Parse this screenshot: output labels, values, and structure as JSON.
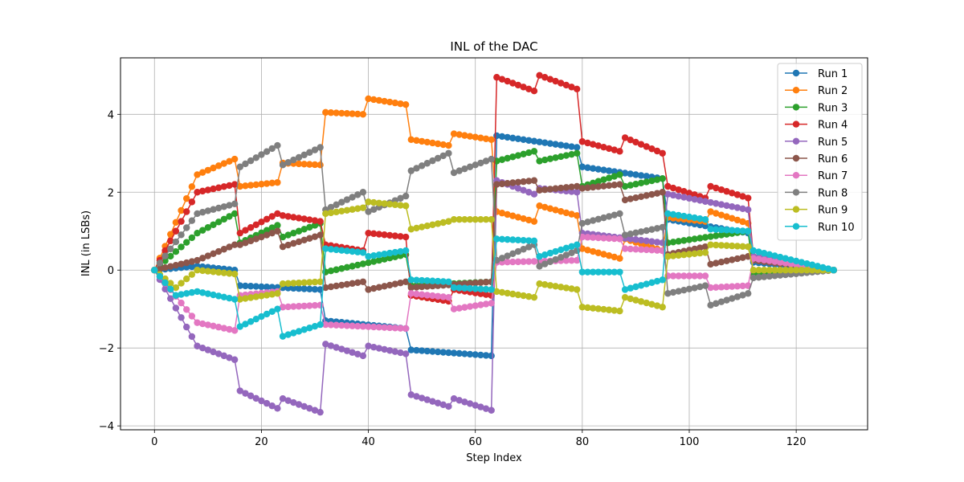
{
  "chart_data": {
    "type": "line",
    "title": "INL of the DAC",
    "xlabel": "Step Index",
    "ylabel": "INL (in LSBs)",
    "xlim": [
      -6.35,
      133.35
    ],
    "ylim": [
      -4.1,
      5.45
    ],
    "xticks": [
      0,
      20,
      40,
      60,
      80,
      100,
      120
    ],
    "yticks": [
      -4,
      -2,
      0,
      2,
      4
    ],
    "ytick_labels": [
      "−4",
      "−2",
      "0",
      "2",
      "4"
    ],
    "grid": true,
    "legend_position": "top-right",
    "n_points": 128,
    "series": [
      {
        "name": "Run 1",
        "color": "#1f77b4",
        "anchors": [
          [
            0,
            0
          ],
          [
            8,
            0.1
          ],
          [
            15,
            0.0
          ],
          [
            16,
            -0.4
          ],
          [
            31,
            -0.5
          ],
          [
            32,
            -1.3
          ],
          [
            47,
            -1.5
          ],
          [
            48,
            -2.05
          ],
          [
            63,
            -2.2
          ],
          [
            64,
            3.45
          ],
          [
            79,
            3.15
          ],
          [
            80,
            2.65
          ],
          [
            95,
            2.35
          ],
          [
            96,
            1.3
          ],
          [
            111,
            0.95
          ],
          [
            112,
            0.2
          ],
          [
            127,
            0
          ]
        ]
      },
      {
        "name": "Run 2",
        "color": "#ff7f0e",
        "anchors": [
          [
            0,
            0
          ],
          [
            8,
            2.45
          ],
          [
            15,
            2.85
          ],
          [
            16,
            2.15
          ],
          [
            23,
            2.25
          ],
          [
            24,
            2.75
          ],
          [
            31,
            2.7
          ],
          [
            32,
            4.05
          ],
          [
            39,
            4.0
          ],
          [
            40,
            4.4
          ],
          [
            47,
            4.25
          ],
          [
            48,
            3.35
          ],
          [
            55,
            3.2
          ],
          [
            56,
            3.5
          ],
          [
            63,
            3.35
          ],
          [
            64,
            1.5
          ],
          [
            71,
            1.25
          ],
          [
            72,
            1.65
          ],
          [
            79,
            1.4
          ],
          [
            80,
            0.55
          ],
          [
            87,
            0.3
          ],
          [
            88,
            0.8
          ],
          [
            95,
            0.5
          ],
          [
            96,
            1.35
          ],
          [
            103,
            1.25
          ],
          [
            104,
            1.5
          ],
          [
            111,
            1.2
          ],
          [
            112,
            0.3
          ],
          [
            127,
            0
          ]
        ]
      },
      {
        "name": "Run 3",
        "color": "#2ca02c",
        "anchors": [
          [
            0,
            0
          ],
          [
            8,
            0.95
          ],
          [
            15,
            1.45
          ],
          [
            16,
            0.7
          ],
          [
            23,
            1.15
          ],
          [
            24,
            0.85
          ],
          [
            31,
            1.2
          ],
          [
            32,
            -0.05
          ],
          [
            47,
            0.4
          ],
          [
            48,
            -0.4
          ],
          [
            63,
            -0.3
          ],
          [
            64,
            2.8
          ],
          [
            71,
            3.05
          ],
          [
            72,
            2.8
          ],
          [
            79,
            3.0
          ],
          [
            80,
            2.15
          ],
          [
            87,
            2.45
          ],
          [
            88,
            2.15
          ],
          [
            95,
            2.35
          ],
          [
            96,
            0.7
          ],
          [
            111,
            1.0
          ],
          [
            112,
            -0.1
          ],
          [
            127,
            0
          ]
        ]
      },
      {
        "name": "Run 4",
        "color": "#d62728",
        "anchors": [
          [
            0,
            0
          ],
          [
            8,
            2.0
          ],
          [
            15,
            2.2
          ],
          [
            16,
            0.95
          ],
          [
            23,
            1.45
          ],
          [
            24,
            1.4
          ],
          [
            31,
            1.25
          ],
          [
            32,
            0.65
          ],
          [
            39,
            0.5
          ],
          [
            40,
            0.95
          ],
          [
            47,
            0.85
          ],
          [
            48,
            -0.65
          ],
          [
            55,
            -0.8
          ],
          [
            56,
            -0.5
          ],
          [
            63,
            -0.65
          ],
          [
            64,
            4.95
          ],
          [
            71,
            4.6
          ],
          [
            72,
            5.0
          ],
          [
            79,
            4.65
          ],
          [
            80,
            3.3
          ],
          [
            87,
            3.05
          ],
          [
            88,
            3.4
          ],
          [
            95,
            3.0
          ],
          [
            96,
            2.15
          ],
          [
            103,
            1.85
          ],
          [
            104,
            2.15
          ],
          [
            111,
            1.85
          ],
          [
            112,
            0.35
          ],
          [
            127,
            0
          ]
        ]
      },
      {
        "name": "Run 5",
        "color": "#9467bd",
        "anchors": [
          [
            0,
            0
          ],
          [
            8,
            -1.95
          ],
          [
            15,
            -2.3
          ],
          [
            16,
            -3.1
          ],
          [
            23,
            -3.55
          ],
          [
            24,
            -3.3
          ],
          [
            31,
            -3.65
          ],
          [
            32,
            -1.9
          ],
          [
            39,
            -2.2
          ],
          [
            40,
            -1.95
          ],
          [
            47,
            -2.15
          ],
          [
            48,
            -3.2
          ],
          [
            55,
            -3.5
          ],
          [
            56,
            -3.3
          ],
          [
            63,
            -3.6
          ],
          [
            64,
            2.3
          ],
          [
            71,
            1.95
          ],
          [
            72,
            2.1
          ],
          [
            79,
            2.0
          ],
          [
            80,
            0.95
          ],
          [
            95,
            0.7
          ],
          [
            96,
            1.95
          ],
          [
            111,
            1.55
          ],
          [
            112,
            0.35
          ],
          [
            127,
            0
          ]
        ]
      },
      {
        "name": "Run 6",
        "color": "#8c564b",
        "anchors": [
          [
            0,
            0
          ],
          [
            8,
            0.25
          ],
          [
            15,
            0.65
          ],
          [
            16,
            0.65
          ],
          [
            23,
            1.0
          ],
          [
            24,
            0.6
          ],
          [
            31,
            0.9
          ],
          [
            32,
            -0.45
          ],
          [
            39,
            -0.3
          ],
          [
            40,
            -0.5
          ],
          [
            47,
            -0.3
          ],
          [
            48,
            -0.45
          ],
          [
            63,
            -0.3
          ],
          [
            64,
            2.2
          ],
          [
            71,
            2.3
          ],
          [
            72,
            2.05
          ],
          [
            79,
            2.15
          ],
          [
            80,
            2.1
          ],
          [
            87,
            2.2
          ],
          [
            88,
            1.8
          ],
          [
            95,
            2.0
          ],
          [
            96,
            0.4
          ],
          [
            103,
            0.6
          ],
          [
            104,
            0.15
          ],
          [
            111,
            0.35
          ],
          [
            112,
            0.25
          ],
          [
            127,
            0
          ]
        ]
      },
      {
        "name": "Run 7",
        "color": "#e377c2",
        "anchors": [
          [
            0,
            0
          ],
          [
            8,
            -1.35
          ],
          [
            15,
            -1.55
          ],
          [
            16,
            -0.65
          ],
          [
            23,
            -0.55
          ],
          [
            24,
            -0.95
          ],
          [
            31,
            -0.9
          ],
          [
            32,
            -1.4
          ],
          [
            47,
            -1.5
          ],
          [
            48,
            -0.6
          ],
          [
            55,
            -0.7
          ],
          [
            56,
            -1.0
          ],
          [
            63,
            -0.85
          ],
          [
            64,
            0.2
          ],
          [
            79,
            0.25
          ],
          [
            80,
            0.85
          ],
          [
            87,
            0.8
          ],
          [
            88,
            0.55
          ],
          [
            95,
            0.5
          ],
          [
            96,
            -0.15
          ],
          [
            103,
            -0.15
          ],
          [
            104,
            -0.45
          ],
          [
            111,
            -0.4
          ],
          [
            112,
            0.3
          ],
          [
            127,
            0
          ]
        ]
      },
      {
        "name": "Run 8",
        "color": "#7f7f7f",
        "anchors": [
          [
            0,
            0
          ],
          [
            8,
            1.45
          ],
          [
            15,
            1.7
          ],
          [
            16,
            2.65
          ],
          [
            23,
            3.2
          ],
          [
            24,
            2.7
          ],
          [
            31,
            3.15
          ],
          [
            32,
            1.55
          ],
          [
            39,
            2.0
          ],
          [
            40,
            1.5
          ],
          [
            47,
            1.9
          ],
          [
            48,
            2.55
          ],
          [
            55,
            3.0
          ],
          [
            56,
            2.5
          ],
          [
            63,
            2.85
          ],
          [
            64,
            0.25
          ],
          [
            71,
            0.65
          ],
          [
            72,
            0.1
          ],
          [
            79,
            0.5
          ],
          [
            80,
            1.2
          ],
          [
            87,
            1.45
          ],
          [
            88,
            0.9
          ],
          [
            95,
            1.1
          ],
          [
            96,
            -0.6
          ],
          [
            103,
            -0.4
          ],
          [
            104,
            -0.9
          ],
          [
            111,
            -0.6
          ],
          [
            112,
            -0.2
          ],
          [
            127,
            0
          ]
        ]
      },
      {
        "name": "Run 9",
        "color": "#bcbd22",
        "anchors": [
          [
            0,
            0
          ],
          [
            4,
            -0.45
          ],
          [
            8,
            0.0
          ],
          [
            15,
            -0.1
          ],
          [
            16,
            -0.75
          ],
          [
            23,
            -0.6
          ],
          [
            24,
            -0.35
          ],
          [
            31,
            -0.3
          ],
          [
            32,
            1.45
          ],
          [
            39,
            1.6
          ],
          [
            40,
            1.75
          ],
          [
            47,
            1.65
          ],
          [
            48,
            1.05
          ],
          [
            55,
            1.25
          ],
          [
            56,
            1.3
          ],
          [
            63,
            1.3
          ],
          [
            64,
            -0.55
          ],
          [
            71,
            -0.7
          ],
          [
            72,
            -0.35
          ],
          [
            79,
            -0.5
          ],
          [
            80,
            -0.95
          ],
          [
            87,
            -1.05
          ],
          [
            88,
            -0.7
          ],
          [
            95,
            -0.95
          ],
          [
            96,
            0.35
          ],
          [
            103,
            0.45
          ],
          [
            104,
            0.65
          ],
          [
            111,
            0.6
          ],
          [
            112,
            0.0
          ],
          [
            127,
            0
          ]
        ]
      },
      {
        "name": "Run 10",
        "color": "#17becf",
        "anchors": [
          [
            0,
            0
          ],
          [
            4,
            -0.65
          ],
          [
            8,
            -0.55
          ],
          [
            15,
            -0.75
          ],
          [
            16,
            -1.45
          ],
          [
            23,
            -1.0
          ],
          [
            24,
            -1.7
          ],
          [
            31,
            -1.4
          ],
          [
            32,
            0.55
          ],
          [
            39,
            0.45
          ],
          [
            40,
            0.35
          ],
          [
            47,
            0.5
          ],
          [
            48,
            -0.25
          ],
          [
            55,
            -0.3
          ],
          [
            56,
            -0.45
          ],
          [
            63,
            -0.5
          ],
          [
            64,
            0.8
          ],
          [
            71,
            0.75
          ],
          [
            72,
            0.35
          ],
          [
            79,
            0.65
          ],
          [
            80,
            -0.05
          ],
          [
            87,
            -0.05
          ],
          [
            88,
            -0.5
          ],
          [
            95,
            -0.25
          ],
          [
            96,
            1.45
          ],
          [
            103,
            1.3
          ],
          [
            104,
            1.05
          ],
          [
            111,
            1.0
          ],
          [
            112,
            0.5
          ],
          [
            127,
            0
          ]
        ]
      }
    ]
  }
}
